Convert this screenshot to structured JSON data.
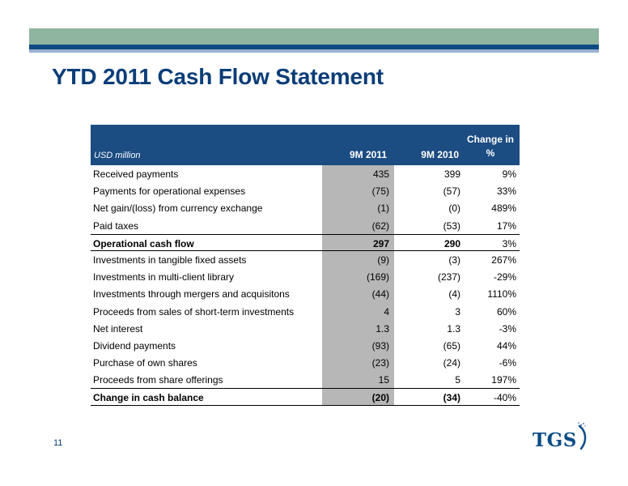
{
  "slide": {
    "title": "YTD 2011 Cash Flow Statement",
    "page_number": "11"
  },
  "logo": {
    "text": "TGS",
    "color": "#0b4c86"
  },
  "colors": {
    "title": "#0b3d78",
    "header_bg": "#1b4c82",
    "band_green": "#8fb5a0",
    "band_navy": "#0d4a82",
    "shade": "#b7b7b7"
  },
  "table": {
    "unit_label": "USD million",
    "col_9m2011": "9M 2011",
    "col_9m2010": "9M 2010",
    "col_change_line1": "Change in",
    "col_change_line2": "%",
    "rows": [
      {
        "label": "Received payments",
        "v2011": "435",
        "v2010": "399",
        "change": "9%"
      },
      {
        "label": "Payments for operational expenses",
        "v2011": "(75)",
        "v2010": "(57)",
        "change": "33%"
      },
      {
        "label": "Net gain/(loss) from currency exchange",
        "v2011": "(1)",
        "v2010": "(0)",
        "change": "489%"
      },
      {
        "label": "Paid taxes",
        "v2011": "(62)",
        "v2010": "(53)",
        "change": "17%"
      },
      {
        "label": "Operational cash flow",
        "v2011": "297",
        "v2010": "290",
        "change": "3%"
      },
      {
        "label": "Investments in tangible fixed assets",
        "v2011": "(9)",
        "v2010": "(3)",
        "change": "267%"
      },
      {
        "label": "Investments in multi-client library",
        "v2011": "(169)",
        "v2010": "(237)",
        "change": "-29%"
      },
      {
        "label": "Investments through mergers and acquisitons",
        "v2011": "(44)",
        "v2010": "(4)",
        "change": "1110%"
      },
      {
        "label": "Proceeds from sales of short-term investments",
        "v2011": "4",
        "v2010": "3",
        "change": "60%"
      },
      {
        "label": "Net interest",
        "v2011": "1.3",
        "v2010": "1.3",
        "change": "-3%"
      },
      {
        "label": "Dividend payments",
        "v2011": "(93)",
        "v2010": "(65)",
        "change": "44%"
      },
      {
        "label": "Purchase of own shares",
        "v2011": "(23)",
        "v2010": "(24)",
        "change": "-6%"
      },
      {
        "label": "Proceeds from share offerings",
        "v2011": "15",
        "v2010": "5",
        "change": "197%"
      },
      {
        "label": "Change in cash balance",
        "v2011": "(20)",
        "v2010": "(34)",
        "change": "-40%"
      }
    ]
  }
}
